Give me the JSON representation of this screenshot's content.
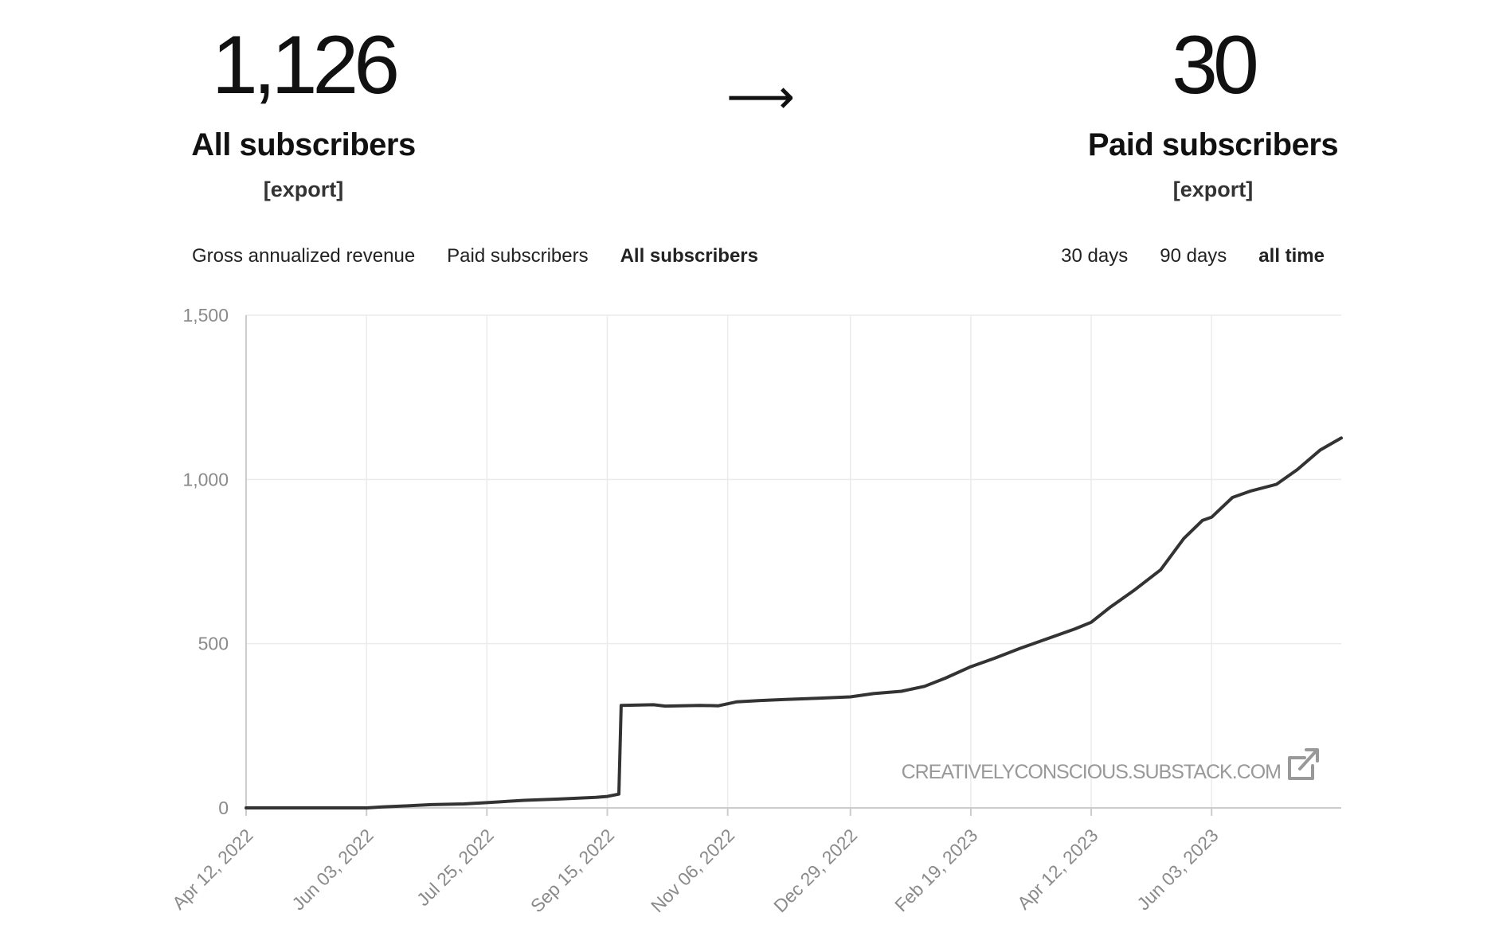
{
  "summary": {
    "all_subscribers": {
      "value": "1,126",
      "label": "All subscribers",
      "export": "[export]"
    },
    "arrow": "⟶",
    "paid_subscribers": {
      "value": "30",
      "label": "Paid subscribers",
      "export": "[export]"
    }
  },
  "metric_tabs": [
    "Gross annualized revenue",
    "Paid subscribers",
    "All subscribers"
  ],
  "active_metric": "All subscribers",
  "range_tabs": [
    "30 days",
    "90 days",
    "all time"
  ],
  "active_range": "all time",
  "watermark": {
    "text": "CREATIVELYCONSCIOUS.SUBSTACK.COM",
    "icon": "external-link-icon"
  },
  "colors": {
    "line": "#333333",
    "grid": "#ebebeb",
    "axis": "#cccccc",
    "tick_text": "#8a8a8a"
  },
  "chart_data": {
    "type": "line",
    "title": "",
    "xlabel": "",
    "ylabel": "",
    "x_ticks": [
      "Apr 12, 2022",
      "Jun 03, 2022",
      "Jul 25, 2022",
      "Sep 15, 2022",
      "Nov 06, 2022",
      "Dec 29, 2022",
      "Feb 19, 2023",
      "Apr 12, 2023",
      "Jun 03, 2023"
    ],
    "y_ticks": [
      "0",
      "500",
      "1,000",
      "1,500"
    ],
    "ylim": [
      0,
      1500
    ],
    "xlim": [
      "2022-04-12",
      "2023-07-29"
    ],
    "grid": true,
    "legend": "none",
    "series": [
      {
        "points": [
          [
            "2022-04-12",
            0
          ],
          [
            "2022-05-20",
            0
          ],
          [
            "2022-06-03",
            0
          ],
          [
            "2022-06-10",
            3
          ],
          [
            "2022-06-20",
            6
          ],
          [
            "2022-07-01",
            10
          ],
          [
            "2022-07-15",
            12
          ],
          [
            "2022-07-25",
            16
          ],
          [
            "2022-08-10",
            23
          ],
          [
            "2022-08-25",
            27
          ],
          [
            "2022-09-10",
            32
          ],
          [
            "2022-09-15",
            35
          ],
          [
            "2022-09-20",
            42
          ],
          [
            "2022-09-21",
            312
          ],
          [
            "2022-10-05",
            314
          ],
          [
            "2022-10-10",
            310
          ],
          [
            "2022-10-25",
            312
          ],
          [
            "2022-11-02",
            311
          ],
          [
            "2022-11-10",
            323
          ],
          [
            "2022-11-20",
            327
          ],
          [
            "2022-12-01",
            330
          ],
          [
            "2022-12-15",
            334
          ],
          [
            "2022-12-29",
            338
          ],
          [
            "2023-01-08",
            348
          ],
          [
            "2023-01-20",
            355
          ],
          [
            "2023-01-30",
            370
          ],
          [
            "2023-02-08",
            395
          ],
          [
            "2023-02-19",
            430
          ],
          [
            "2023-03-01",
            455
          ],
          [
            "2023-03-12",
            485
          ],
          [
            "2023-03-24",
            515
          ],
          [
            "2023-04-05",
            545
          ],
          [
            "2023-04-12",
            565
          ],
          [
            "2023-04-20",
            610
          ],
          [
            "2023-05-01",
            665
          ],
          [
            "2023-05-12",
            725
          ],
          [
            "2023-05-22",
            820
          ],
          [
            "2023-05-30",
            875
          ],
          [
            "2023-06-03",
            885
          ],
          [
            "2023-06-12",
            945
          ],
          [
            "2023-06-20",
            965
          ],
          [
            "2023-07-01",
            985
          ],
          [
            "2023-07-10",
            1030
          ],
          [
            "2023-07-20",
            1090
          ],
          [
            "2023-07-29",
            1126
          ]
        ]
      }
    ]
  }
}
